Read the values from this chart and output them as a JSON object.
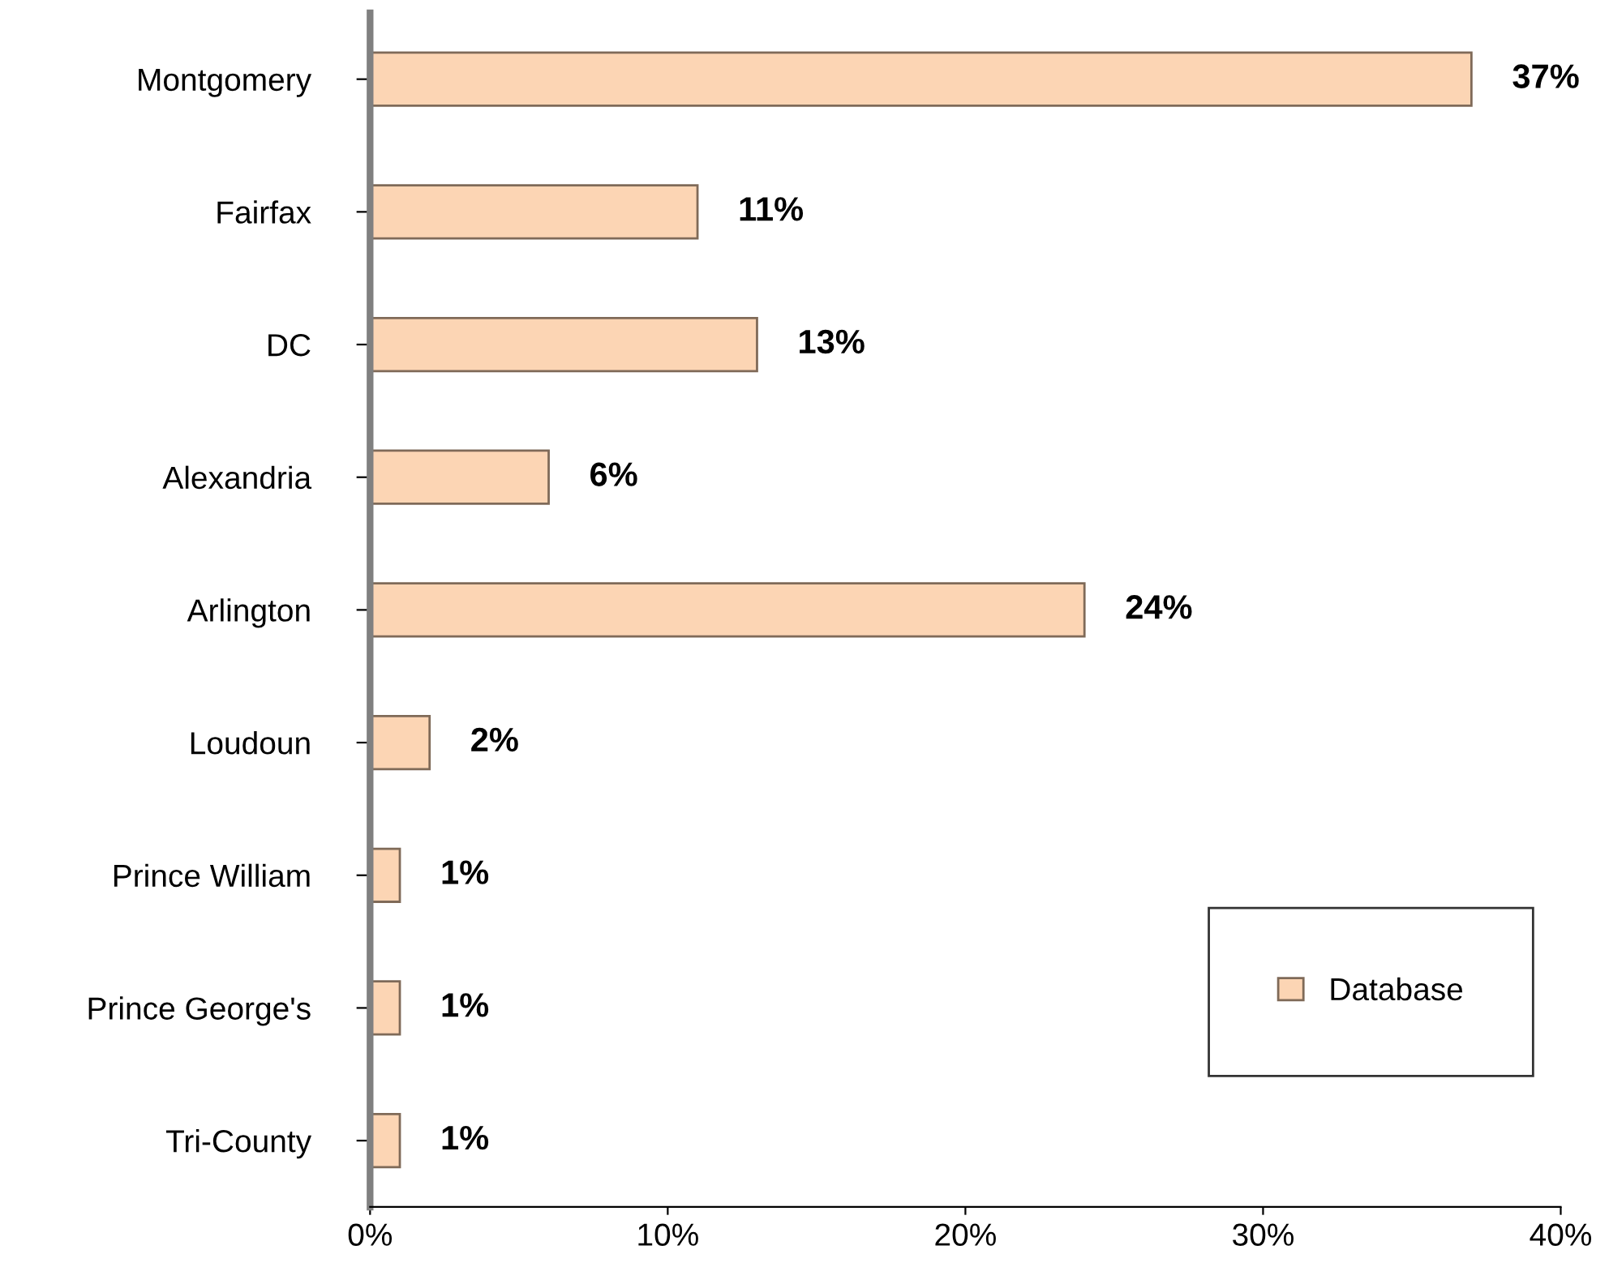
{
  "chart_data": {
    "type": "bar",
    "orientation": "horizontal",
    "categories": [
      "Montgomery",
      "Fairfax",
      "DC",
      "Alexandria",
      "Arlington",
      "Loudoun",
      "Prince William",
      "Prince George's",
      "Tri-County"
    ],
    "series": [
      {
        "name": "Database",
        "color": "#fcd5b4",
        "values": [
          37,
          11,
          13,
          6,
          24,
          2,
          1,
          1,
          1
        ],
        "value_labels": [
          "37%",
          "11%",
          "13%",
          "6%",
          "24%",
          "2%",
          "1%",
          "1%",
          "1%"
        ]
      }
    ],
    "xlim": [
      0,
      40
    ],
    "xticks": [
      {
        "value": 0,
        "label": "0%"
      },
      {
        "value": 10,
        "label": "10%"
      },
      {
        "value": 20,
        "label": "20%"
      },
      {
        "value": 30,
        "label": "30%"
      },
      {
        "value": 40,
        "label": "40%"
      }
    ],
    "grid": false,
    "legend": "right"
  }
}
